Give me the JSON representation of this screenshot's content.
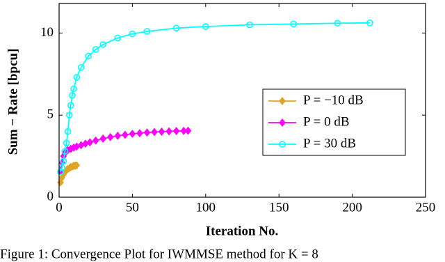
{
  "chart_data": {
    "type": "line",
    "xlabel": "Iteration No.",
    "ylabel": "Sum − Rate [bpcu]",
    "caption": "Figure 1: Convergence Plot for IWMMSE method for K = 8",
    "xlim": [
      0,
      250
    ],
    "xticks": [
      0,
      50,
      100,
      150,
      200,
      250
    ],
    "ylim": [
      0,
      11.8
    ],
    "yticks": [
      0,
      5,
      10
    ],
    "legend": "right",
    "series": [
      {
        "name": "P = −10 dB",
        "color": "#e0a526",
        "marker": "diamond",
        "x": [
          1,
          2,
          3,
          4,
          5,
          6,
          7,
          8,
          9,
          10,
          11,
          12
        ],
        "values": [
          0.9,
          1.2,
          1.4,
          1.55,
          1.65,
          1.72,
          1.78,
          1.83,
          1.87,
          1.9,
          1.92,
          1.94
        ]
      },
      {
        "name": "P = 0 dB",
        "color": "#ff00ff",
        "marker": "diamond",
        "x": [
          1,
          2,
          3,
          4,
          5,
          6,
          8,
          10,
          12,
          15,
          18,
          21,
          25,
          30,
          35,
          40,
          45,
          50,
          55,
          60,
          65,
          70,
          75,
          80,
          85,
          88
        ],
        "values": [
          1.6,
          2.1,
          2.5,
          2.7,
          2.8,
          2.87,
          2.95,
          3.02,
          3.08,
          3.17,
          3.26,
          3.34,
          3.45,
          3.57,
          3.66,
          3.74,
          3.8,
          3.86,
          3.9,
          3.94,
          3.97,
          3.99,
          4.01,
          4.03,
          4.04,
          4.05
        ]
      },
      {
        "name": "P = 30 dB",
        "color": "#00ffff",
        "marker": "circle",
        "x": [
          1,
          2,
          3,
          4,
          5,
          6,
          7,
          8,
          9,
          10,
          12,
          15,
          20,
          25,
          30,
          40,
          50,
          60,
          80,
          100,
          130,
          160,
          190,
          212
        ],
        "values": [
          1.55,
          1.8,
          2.2,
          2.8,
          3.3,
          4.0,
          5.0,
          5.6,
          6.2,
          6.6,
          7.3,
          7.9,
          8.6,
          9.0,
          9.3,
          9.7,
          9.95,
          10.1,
          10.3,
          10.4,
          10.5,
          10.55,
          10.6,
          10.62
        ]
      }
    ]
  }
}
